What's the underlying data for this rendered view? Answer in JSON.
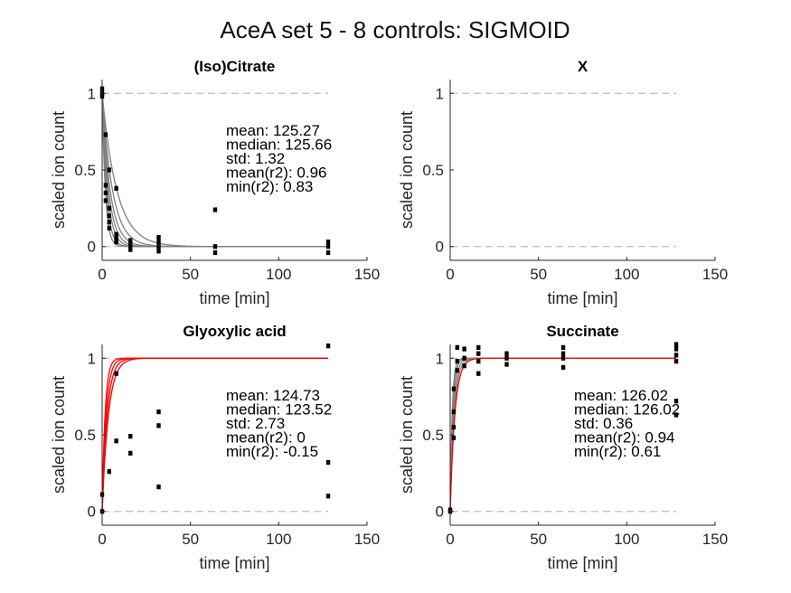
{
  "figure": {
    "title": "AceA set 5 - 8 controls: SIGMOID",
    "colors": {
      "fit_gray": "#808080",
      "fit_red": "#ff0000",
      "points": "#000000",
      "ref_line": "#bdbdbd",
      "axes": "#262626"
    }
  },
  "chart_data": [
    {
      "type": "scatter",
      "title": "(Iso)Citrate",
      "xlabel": "time [min]",
      "ylabel": "scaled ion count",
      "xlim": [
        0,
        150
      ],
      "ylim": [
        -0.09,
        1.09
      ],
      "xticks": [
        "0",
        "50",
        "100",
        "150"
      ],
      "yticks": [
        "0",
        "0.5",
        "1"
      ],
      "grid": false,
      "reference_lines": [
        0,
        1
      ],
      "stats": [
        "mean: 125.27",
        "median: 125.66",
        "std: 1.32",
        "mean(r2): 0.96",
        "min(r2): 0.83"
      ],
      "fit_color": "#808080",
      "fits": [
        {
          "type": "decay",
          "a": 1.0,
          "k": 0.55
        },
        {
          "type": "decay",
          "a": 1.0,
          "k": 0.42
        },
        {
          "type": "decay",
          "a": 1.0,
          "k": 0.33
        },
        {
          "type": "decay",
          "a": 1.0,
          "k": 0.27
        },
        {
          "type": "decay",
          "a": 1.0,
          "k": 0.22
        },
        {
          "type": "decay",
          "a": 1.0,
          "k": 0.17
        },
        {
          "type": "decay",
          "a": 1.0,
          "k": 0.12
        }
      ],
      "points": [
        {
          "x": 0,
          "y": 1.03
        },
        {
          "x": 0,
          "y": 1.0
        },
        {
          "x": 0,
          "y": 0.98
        },
        {
          "x": 2,
          "y": 0.73
        },
        {
          "x": 2,
          "y": 0.4
        },
        {
          "x": 2,
          "y": 0.35
        },
        {
          "x": 2,
          "y": 0.3
        },
        {
          "x": 4,
          "y": 0.5
        },
        {
          "x": 4,
          "y": 0.25
        },
        {
          "x": 4,
          "y": 0.2
        },
        {
          "x": 4,
          "y": 0.16
        },
        {
          "x": 4,
          "y": 0.12
        },
        {
          "x": 8,
          "y": 0.38
        },
        {
          "x": 8,
          "y": 0.08
        },
        {
          "x": 8,
          "y": 0.05
        },
        {
          "x": 8,
          "y": 0.03
        },
        {
          "x": 16,
          "y": 0.04
        },
        {
          "x": 16,
          "y": 0.02
        },
        {
          "x": 16,
          "y": 0.0
        },
        {
          "x": 16,
          "y": -0.02
        },
        {
          "x": 32,
          "y": 0.06
        },
        {
          "x": 32,
          "y": 0.03
        },
        {
          "x": 32,
          "y": 0.0
        },
        {
          "x": 32,
          "y": -0.03
        },
        {
          "x": 64,
          "y": 0.24
        },
        {
          "x": 64,
          "y": 0.0
        },
        {
          "x": 64,
          "y": -0.04
        },
        {
          "x": 128,
          "y": 0.03
        },
        {
          "x": 128,
          "y": 0.0
        },
        {
          "x": 128,
          "y": -0.04
        }
      ]
    },
    {
      "type": "scatter",
      "title": "X",
      "xlabel": "time [min]",
      "ylabel": "scaled ion count",
      "xlim": [
        0,
        150
      ],
      "ylim": [
        -0.09,
        1.09
      ],
      "xticks": [
        "0",
        "50",
        "100",
        "150"
      ],
      "yticks": [
        "0",
        "0.5",
        "1"
      ],
      "grid": false,
      "reference_lines": [
        0,
        1
      ],
      "stats": [],
      "fits": [],
      "points": []
    },
    {
      "type": "scatter",
      "title": "Glyoxylic acid",
      "xlabel": "time [min]",
      "ylabel": "scaled ion count",
      "xlim": [
        0,
        150
      ],
      "ylim": [
        -0.09,
        1.09
      ],
      "xticks": [
        "0",
        "50",
        "100",
        "150"
      ],
      "yticks": [
        "0",
        "0.5",
        "1"
      ],
      "grid": false,
      "reference_lines": [
        0,
        1
      ],
      "stats": [
        "mean: 124.73",
        "median: 123.52",
        "std: 2.73",
        "mean(r2): 0",
        "min(r2): -0.15"
      ],
      "fit_color": "#ff0000",
      "fits": [
        {
          "type": "rise",
          "a": 1.0,
          "k": 0.6
        },
        {
          "type": "rise",
          "a": 1.0,
          "k": 0.45
        },
        {
          "type": "rise",
          "a": 1.0,
          "k": 0.35
        },
        {
          "type": "rise",
          "a": 1.0,
          "k": 0.28
        }
      ],
      "points": [
        {
          "x": 0,
          "y": 0.11
        },
        {
          "x": 0,
          "y": 0.0
        },
        {
          "x": 4,
          "y": 0.26
        },
        {
          "x": 8,
          "y": 0.9
        },
        {
          "x": 8,
          "y": 0.46
        },
        {
          "x": 16,
          "y": 0.49
        },
        {
          "x": 16,
          "y": 0.38
        },
        {
          "x": 32,
          "y": 0.65
        },
        {
          "x": 32,
          "y": 0.56
        },
        {
          "x": 32,
          "y": 0.16
        },
        {
          "x": 128,
          "y": 1.08
        },
        {
          "x": 128,
          "y": 0.32
        },
        {
          "x": 128,
          "y": 0.1
        }
      ]
    },
    {
      "type": "scatter",
      "title": "Succinate",
      "xlabel": "time [min]",
      "ylabel": "scaled ion count",
      "xlim": [
        0,
        150
      ],
      "ylim": [
        -0.09,
        1.09
      ],
      "xticks": [
        "0",
        "50",
        "100",
        "150"
      ],
      "yticks": [
        "0",
        "0.5",
        "1"
      ],
      "grid": false,
      "reference_lines": [
        0,
        1
      ],
      "stats": [
        "mean: 126.02",
        "median: 126.02",
        "std: 0.36",
        "mean(r2): 0.94",
        "min(r2): 0.61"
      ],
      "fit_color": "#808080",
      "fits": [
        {
          "type": "rise",
          "a": 1.0,
          "k": 0.9
        },
        {
          "type": "rise",
          "a": 1.0,
          "k": 0.7
        },
        {
          "type": "rise",
          "a": 1.0,
          "k": 0.55
        },
        {
          "type": "rise",
          "a": 1.0,
          "k": 0.45
        }
      ],
      "red_fits": [
        {
          "type": "rise",
          "a": 1.0,
          "k": 0.38
        }
      ],
      "points": [
        {
          "x": 0,
          "y": 0.01
        },
        {
          "x": 0,
          "y": 0.0
        },
        {
          "x": 2,
          "y": 0.8
        },
        {
          "x": 2,
          "y": 0.65
        },
        {
          "x": 2,
          "y": 0.55
        },
        {
          "x": 2,
          "y": 0.48
        },
        {
          "x": 4,
          "y": 1.07
        },
        {
          "x": 4,
          "y": 0.98
        },
        {
          "x": 4,
          "y": 0.92
        },
        {
          "x": 8,
          "y": 1.06
        },
        {
          "x": 8,
          "y": 1.0
        },
        {
          "x": 8,
          "y": 0.95
        },
        {
          "x": 16,
          "y": 1.07
        },
        {
          "x": 16,
          "y": 1.03
        },
        {
          "x": 16,
          "y": 0.98
        },
        {
          "x": 16,
          "y": 0.9
        },
        {
          "x": 32,
          "y": 1.03
        },
        {
          "x": 32,
          "y": 1.0
        },
        {
          "x": 32,
          "y": 0.96
        },
        {
          "x": 64,
          "y": 1.07
        },
        {
          "x": 64,
          "y": 1.03
        },
        {
          "x": 64,
          "y": 1.0
        },
        {
          "x": 64,
          "y": 0.94
        },
        {
          "x": 128,
          "y": 1.09
        },
        {
          "x": 128,
          "y": 1.06
        },
        {
          "x": 128,
          "y": 1.02
        },
        {
          "x": 128,
          "y": 0.98
        },
        {
          "x": 128,
          "y": 0.72
        },
        {
          "x": 128,
          "y": 0.63
        }
      ]
    }
  ]
}
